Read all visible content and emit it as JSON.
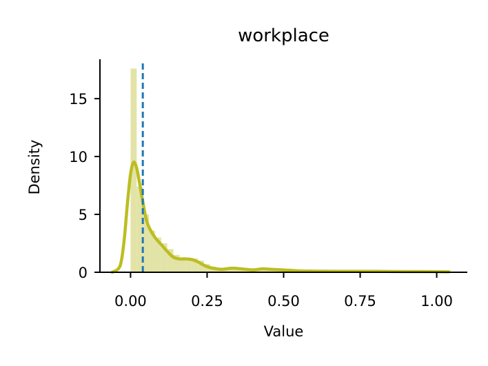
{
  "chart_data": {
    "type": "histogram+kde",
    "title": "workplace",
    "xlabel": "Value",
    "ylabel": "Density",
    "xlim": [
      -0.1,
      1.1
    ],
    "ylim": [
      0,
      18.4
    ],
    "xticks": [
      0.0,
      0.25,
      0.5,
      0.75,
      1.0
    ],
    "xtick_labels": [
      "0.00",
      "0.25",
      "0.50",
      "0.75",
      "1.00"
    ],
    "yticks": [
      0,
      5,
      10,
      15
    ],
    "ytick_labels": [
      "0",
      "5",
      "10",
      "15"
    ],
    "grid": false,
    "bar_color": "#e2e3a6",
    "kde_color": "#bcbd22",
    "line_color": "#1f77b4",
    "histogram": {
      "bin_edges": [
        0.0,
        0.02,
        0.04,
        0.06,
        0.08,
        0.1,
        0.12,
        0.14,
        0.16,
        0.18,
        0.2,
        0.22,
        0.24,
        0.26,
        0.28,
        0.3,
        0.32,
        0.34,
        0.36,
        0.38,
        0.4,
        0.42,
        0.44,
        0.46,
        0.48,
        0.5,
        0.52,
        0.54,
        0.56,
        0.58,
        0.6,
        0.62,
        0.64,
        0.66,
        0.68,
        0.7,
        0.72,
        0.74,
        0.76,
        0.78,
        0.8,
        0.82,
        0.84,
        0.86,
        0.88,
        0.9,
        0.92,
        0.94,
        0.96,
        0.98,
        1.0,
        1.02,
        1.04
      ],
      "values": [
        17.6,
        7.4,
        5.0,
        3.6,
        3.0,
        2.5,
        2.0,
        1.5,
        1.3,
        1.2,
        1.2,
        1.0,
        0.7,
        0.5,
        0.4,
        0.3,
        0.35,
        0.3,
        0.3,
        0.25,
        0.3,
        0.3,
        0.25,
        0.2,
        0.2,
        0.15,
        0.12,
        0.1,
        0.1,
        0.1,
        0.08,
        0.08,
        0.07,
        0.07,
        0.06,
        0.06,
        0.06,
        0.05,
        0.05,
        0.06,
        0.05,
        0.05,
        0.05,
        0.04,
        0.04,
        0.04,
        0.04,
        0.04,
        0.04,
        0.04,
        0.04,
        0.04
      ]
    },
    "kde": {
      "x": [
        -0.06,
        -0.04,
        -0.03,
        -0.02,
        -0.01,
        0.0,
        0.01,
        0.02,
        0.03,
        0.04,
        0.05,
        0.06,
        0.08,
        0.1,
        0.12,
        0.14,
        0.16,
        0.18,
        0.2,
        0.22,
        0.24,
        0.26,
        0.28,
        0.3,
        0.33,
        0.36,
        0.4,
        0.43,
        0.46,
        0.5,
        0.55,
        0.6,
        0.7,
        0.8,
        0.9,
        1.0,
        1.04
      ],
      "y": [
        0.0,
        0.3,
        1.0,
        3.0,
        6.0,
        8.5,
        9.5,
        9.0,
        7.6,
        6.1,
        4.7,
        3.9,
        3.0,
        2.4,
        1.8,
        1.3,
        1.15,
        1.15,
        1.1,
        0.9,
        0.6,
        0.4,
        0.3,
        0.25,
        0.35,
        0.3,
        0.2,
        0.3,
        0.25,
        0.2,
        0.12,
        0.1,
        0.08,
        0.08,
        0.06,
        0.05,
        0.04
      ]
    },
    "vline_x": 0.04
  }
}
